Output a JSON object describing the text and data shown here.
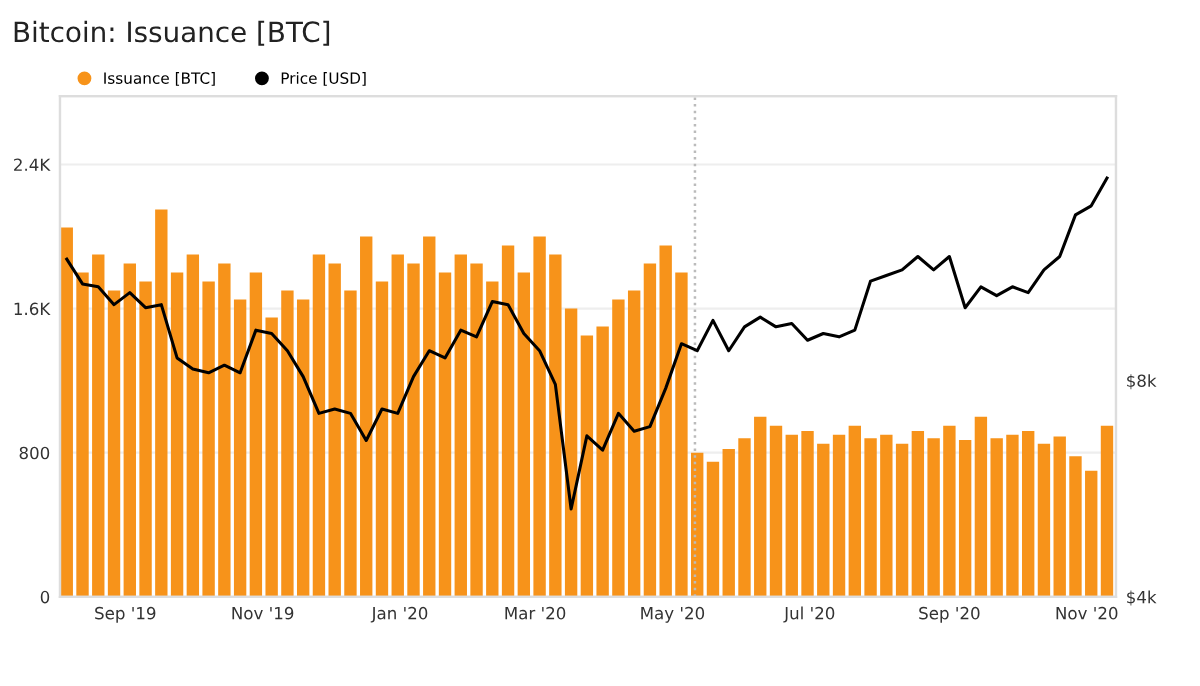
{
  "chart_data": {
    "type": "bar",
    "title": "Bitcoin: Issuance [BTC]",
    "x": [
      "2019-08-06",
      "2019-08-13",
      "2019-08-20",
      "2019-08-27",
      "2019-09-03",
      "2019-09-10",
      "2019-09-17",
      "2019-09-24",
      "2019-10-01",
      "2019-10-08",
      "2019-10-15",
      "2019-10-22",
      "2019-10-29",
      "2019-11-05",
      "2019-11-12",
      "2019-11-19",
      "2019-11-26",
      "2019-12-03",
      "2019-12-10",
      "2019-12-17",
      "2019-12-24",
      "2019-12-31",
      "2020-01-07",
      "2020-01-14",
      "2020-01-21",
      "2020-01-28",
      "2020-02-04",
      "2020-02-11",
      "2020-02-18",
      "2020-02-25",
      "2020-03-03",
      "2020-03-10",
      "2020-03-17",
      "2020-03-24",
      "2020-03-31",
      "2020-04-07",
      "2020-04-14",
      "2020-04-21",
      "2020-04-28",
      "2020-05-05",
      "2020-05-12",
      "2020-05-19",
      "2020-05-26",
      "2020-06-02",
      "2020-06-09",
      "2020-06-16",
      "2020-06-23",
      "2020-06-30",
      "2020-07-07",
      "2020-07-14",
      "2020-07-21",
      "2020-07-28",
      "2020-08-04",
      "2020-08-11",
      "2020-08-18",
      "2020-08-25",
      "2020-09-01",
      "2020-09-08",
      "2020-09-15",
      "2020-09-22",
      "2020-09-29",
      "2020-10-06",
      "2020-10-13",
      "2020-10-20",
      "2020-10-27",
      "2020-11-03",
      "2020-11-10"
    ],
    "series": [
      {
        "name": "Issuance [BTC]",
        "color": "#f7931a",
        "values": [
          2050,
          1800,
          1900,
          1700,
          1850,
          1750,
          2150,
          1800,
          1900,
          1750,
          1850,
          1650,
          1800,
          1550,
          1700,
          1650,
          1900,
          1850,
          1700,
          2000,
          1750,
          1900,
          1850,
          2000,
          1800,
          1900,
          1850,
          1750,
          1950,
          1800,
          2000,
          1900,
          1600,
          1450,
          1500,
          1650,
          1700,
          1850,
          1950,
          1800,
          800,
          750,
          820,
          880,
          1000,
          950,
          900,
          920,
          850,
          900,
          950,
          880,
          900,
          850,
          920,
          880,
          950,
          870,
          1000,
          880,
          900,
          920,
          850,
          890,
          780,
          700,
          950
        ]
      },
      {
        "name": "Price [USD]",
        "type": "line",
        "axis": "y2",
        "color": "#000000",
        "values": [
          11800,
          10900,
          10800,
          10200,
          10600,
          10100,
          10200,
          8600,
          8300,
          8200,
          8400,
          8200,
          9400,
          9300,
          8800,
          8100,
          7200,
          7300,
          7200,
          6600,
          7300,
          7200,
          8100,
          8800,
          8600,
          9400,
          9200,
          10300,
          10200,
          9300,
          8800,
          7900,
          5300,
          6700,
          6400,
          7200,
          6800,
          6900,
          7800,
          9000,
          8800,
          9700,
          8800,
          9500,
          9800,
          9500,
          9600,
          9100,
          9300,
          9200,
          9400,
          11000,
          11200,
          11400,
          11900,
          11400,
          11900,
          10100,
          10800,
          10500,
          10800,
          10600,
          11400,
          11900,
          13600,
          14000,
          15300
        ]
      }
    ],
    "xlim": [
      "2019-08-03",
      "2020-11-14"
    ],
    "xticks": [
      {
        "value": "2019-09-01",
        "label": "Sep '19"
      },
      {
        "value": "2019-11-01",
        "label": "Nov '19"
      },
      {
        "value": "2020-01-01",
        "label": "Jan '20"
      },
      {
        "value": "2020-03-01",
        "label": "Mar '20"
      },
      {
        "value": "2020-05-01",
        "label": "May '20"
      },
      {
        "value": "2020-07-01",
        "label": "Jul '20"
      },
      {
        "value": "2020-09-01",
        "label": "Sep '20"
      },
      {
        "value": "2020-11-01",
        "label": "Nov '20"
      }
    ],
    "ylim": [
      0,
      2780
    ],
    "yticks": [
      0,
      800,
      {
        "value": 1600,
        "label": "1.6K"
      },
      {
        "value": 2400,
        "label": "2.4K"
      }
    ],
    "y2lim": [
      4000,
      19900
    ],
    "y2ticks": [
      {
        "value": 4000,
        "label": "$4k"
      },
      {
        "value": 8000,
        "label": "$8k"
      }
    ],
    "log": "y2",
    "grid": "y",
    "legend": "top left",
    "ref_lines": [
      {
        "axis": "x",
        "value": "2020-05-11",
        "color": "#bbbbbb",
        "line_style": "dotted"
      }
    ]
  }
}
